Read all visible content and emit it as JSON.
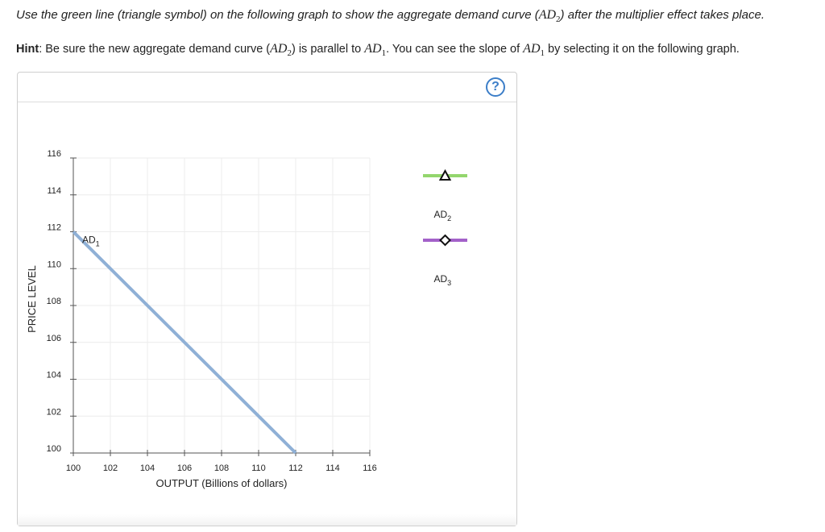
{
  "instruction": {
    "part1": "Use the green line (triangle symbol) on the following graph to show the aggregate demand curve (",
    "math_main": "AD",
    "math_sub": "2",
    "part2": ") after the multiplier effect takes place."
  },
  "hint": {
    "label": "Hint",
    "part1": ": Be sure the new aggregate demand curve (",
    "m1_main": "AD",
    "m1_sub": "2",
    "part2": ") is parallel to ",
    "m2_main": "AD",
    "m2_sub": "1",
    "part3": ". You can see the slope of ",
    "m3_main": "AD",
    "m3_sub": "1",
    "part4": " by selecting it on the following graph."
  },
  "help": {
    "symbol": "?"
  },
  "colors": {
    "ad1": "#8fb0d6",
    "ad2": "#93d66d",
    "ad3": "#a361c9",
    "grid": "#ececec",
    "axis": "#555555"
  },
  "chart_data": {
    "type": "line",
    "xlabel": "OUTPUT (Billions of dollars)",
    "ylabel": "PRICE LEVEL",
    "xlim": [
      100,
      116
    ],
    "ylim": [
      100,
      116
    ],
    "xticks": [
      100,
      102,
      104,
      106,
      108,
      110,
      112,
      114,
      116
    ],
    "yticks": [
      100,
      102,
      104,
      106,
      108,
      110,
      112,
      114,
      116
    ],
    "grid": true,
    "series": [
      {
        "name_main": "AD",
        "name_sub": "1",
        "x": [
          100,
          112
        ],
        "y": [
          112,
          100
        ]
      }
    ],
    "palette_tools": [
      {
        "name_main": "AD",
        "name_sub": "2",
        "symbol": "triangle",
        "color": "#93d66d"
      },
      {
        "name_main": "AD",
        "name_sub": "3",
        "symbol": "diamond",
        "color": "#a361c9"
      }
    ]
  }
}
